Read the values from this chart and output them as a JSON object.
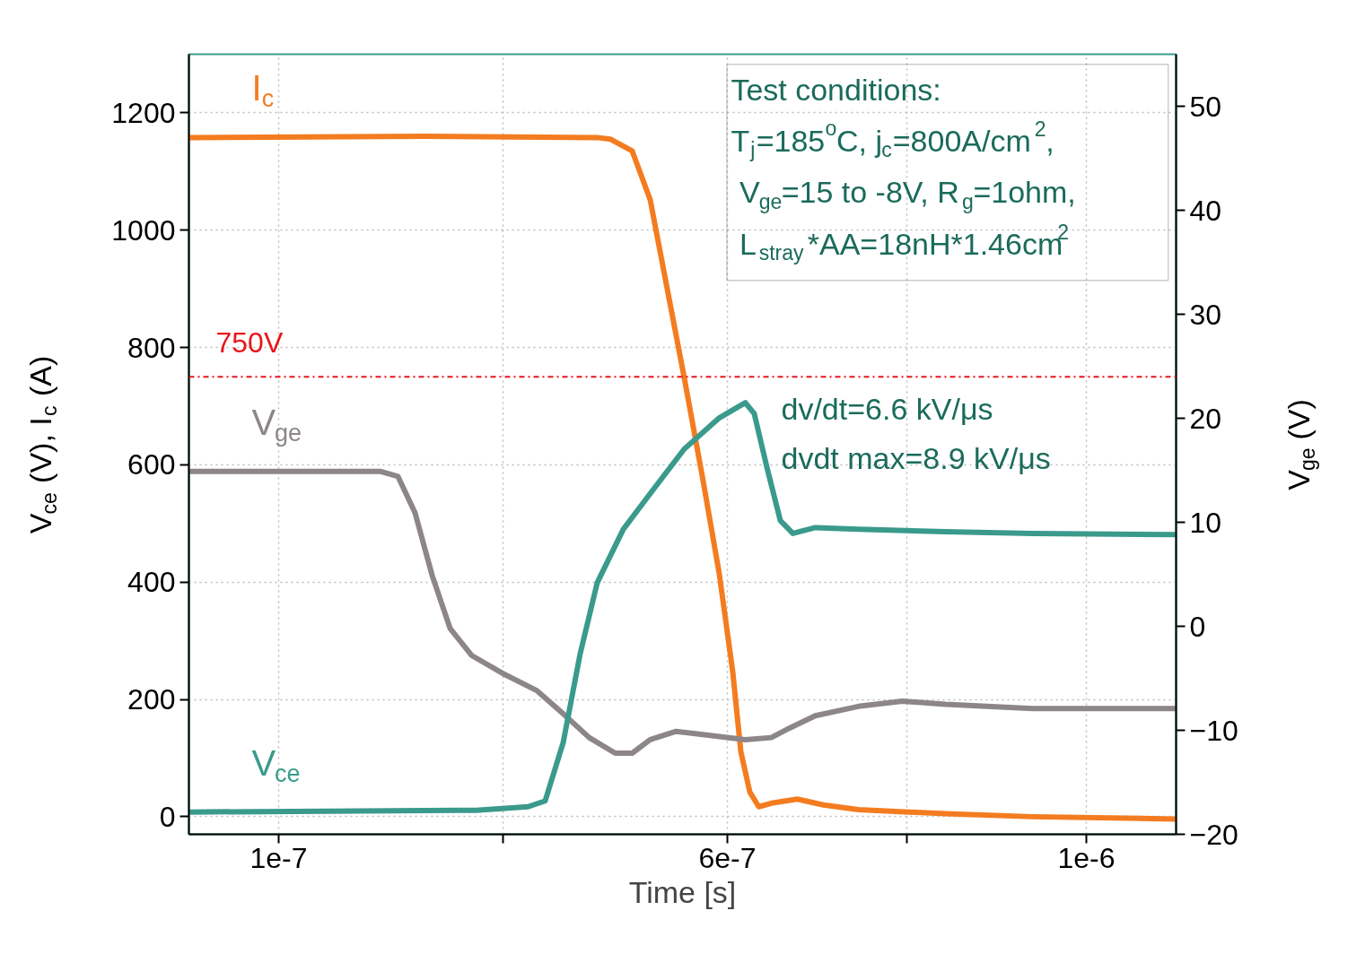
{
  "chart_data": {
    "type": "line",
    "xlabel": "Time [s]",
    "ylabel": "V$_{ce}$ (V), I$_{c}$ (A)",
    "y2label": "V$_{ge}$ (V)",
    "xlim": [
      0,
      1.1e-06
    ],
    "xticks": [
      {
        "value": 1e-07,
        "label": "1e-7"
      },
      {
        "value": 3.5e-07,
        "label": null
      },
      {
        "value": 6e-07,
        "label": "6e-7"
      },
      {
        "value": 8e-07,
        "label": null
      },
      {
        "value": 1e-06,
        "label": "1e-6"
      }
    ],
    "ylim": [
      -30,
      1300
    ],
    "yticks": [
      0,
      200,
      400,
      600,
      800,
      1000,
      1200
    ],
    "y2lim": [
      -20,
      55
    ],
    "y2ticks": [
      {
        "value": -20,
        "label": "−20"
      },
      {
        "value": -10,
        "label": "−10"
      },
      0,
      10,
      20,
      30,
      40,
      50
    ],
    "grid": true,
    "line_style": "solid",
    "series": [
      {
        "name": "I$_{c}$",
        "color": "#f47c20",
        "x": [
          0,
          2.62e-07,
          4.55e-07,
          4.7e-07,
          4.94e-07,
          5.14e-07,
          5.33e-07,
          5.52e-07,
          5.72e-07,
          5.91e-07,
          6.06e-07,
          6.15e-07,
          6.25e-07,
          6.35e-07,
          6.49e-07,
          6.78e-07,
          7.07e-07,
          7.46e-07,
          8.43e-07,
          9.4e-07,
          1.1e-06
        ],
        "values": [
          1158,
          1160,
          1158,
          1155,
          1135,
          1052,
          900,
          748,
          581,
          414,
          247,
          111,
          42,
          17,
          23,
          30,
          20,
          12,
          5,
          0,
          -4
        ]
      },
      {
        "name": "V$_{ge}$",
        "color": "#8c8688",
        "axis": "y2",
        "x": [
          0,
          2.13e-07,
          2.33e-07,
          2.52e-07,
          2.71e-07,
          2.91e-07,
          3.15e-07,
          3.49e-07,
          3.88e-07,
          4.17e-07,
          4.46e-07,
          4.75e-07,
          4.94e-07,
          5.14e-07,
          5.43e-07,
          5.81e-07,
          6.2e-07,
          6.49e-07,
          6.69e-07,
          6.98e-07,
          7.46e-07,
          7.95e-07,
          8.43e-07,
          9.4e-07,
          1.1e-06
        ],
        "values": [
          14.9,
          14.9,
          14.4,
          10.9,
          4.9,
          -0.2,
          -2.8,
          -4.5,
          -6.2,
          -8.4,
          -10.7,
          -12.2,
          -12.2,
          -10.9,
          -10.1,
          -10.5,
          -10.9,
          -10.7,
          -9.8,
          -8.6,
          -7.7,
          -7.2,
          -7.5,
          -7.9,
          -7.9
        ]
      },
      {
        "name": "V$_{ce}$",
        "color": "#3a9a8c",
        "x": [
          0,
          3.2e-07,
          3.78e-07,
          3.97e-07,
          4.17e-07,
          4.36e-07,
          4.55e-07,
          4.84e-07,
          5.14e-07,
          5.52e-07,
          5.91e-07,
          6.2e-07,
          6.3e-07,
          6.44e-07,
          6.59e-07,
          6.73e-07,
          6.98e-07,
          7.46e-07,
          8.43e-07,
          9.4e-07,
          1.1e-06
        ],
        "values": [
          8,
          11,
          17,
          27,
          126,
          278,
          399,
          490,
          551,
          627,
          680,
          706,
          687,
          596,
          505,
          483,
          493,
          490,
          486,
          483,
          481
        ]
      }
    ],
    "ref_lines": [
      {
        "axis": "y",
        "value": 750,
        "label": "750V",
        "color": "#e8161b",
        "line_style": "dashdot"
      }
    ],
    "annotations": [
      "Test conditions:",
      "T$_{j}$=185$^{o}$C,  j$_{c}$=800A/cm$^{2}$,",
      " V$_{ge}$=15 to -8V, R$_{g}$=1ohm,",
      " L$_{stray}$*AA=18nH*1.46cm$^{2}$",
      "dv/dt=6.6 kV/μs",
      "dvdt max=8.9 kV/μs"
    ]
  }
}
